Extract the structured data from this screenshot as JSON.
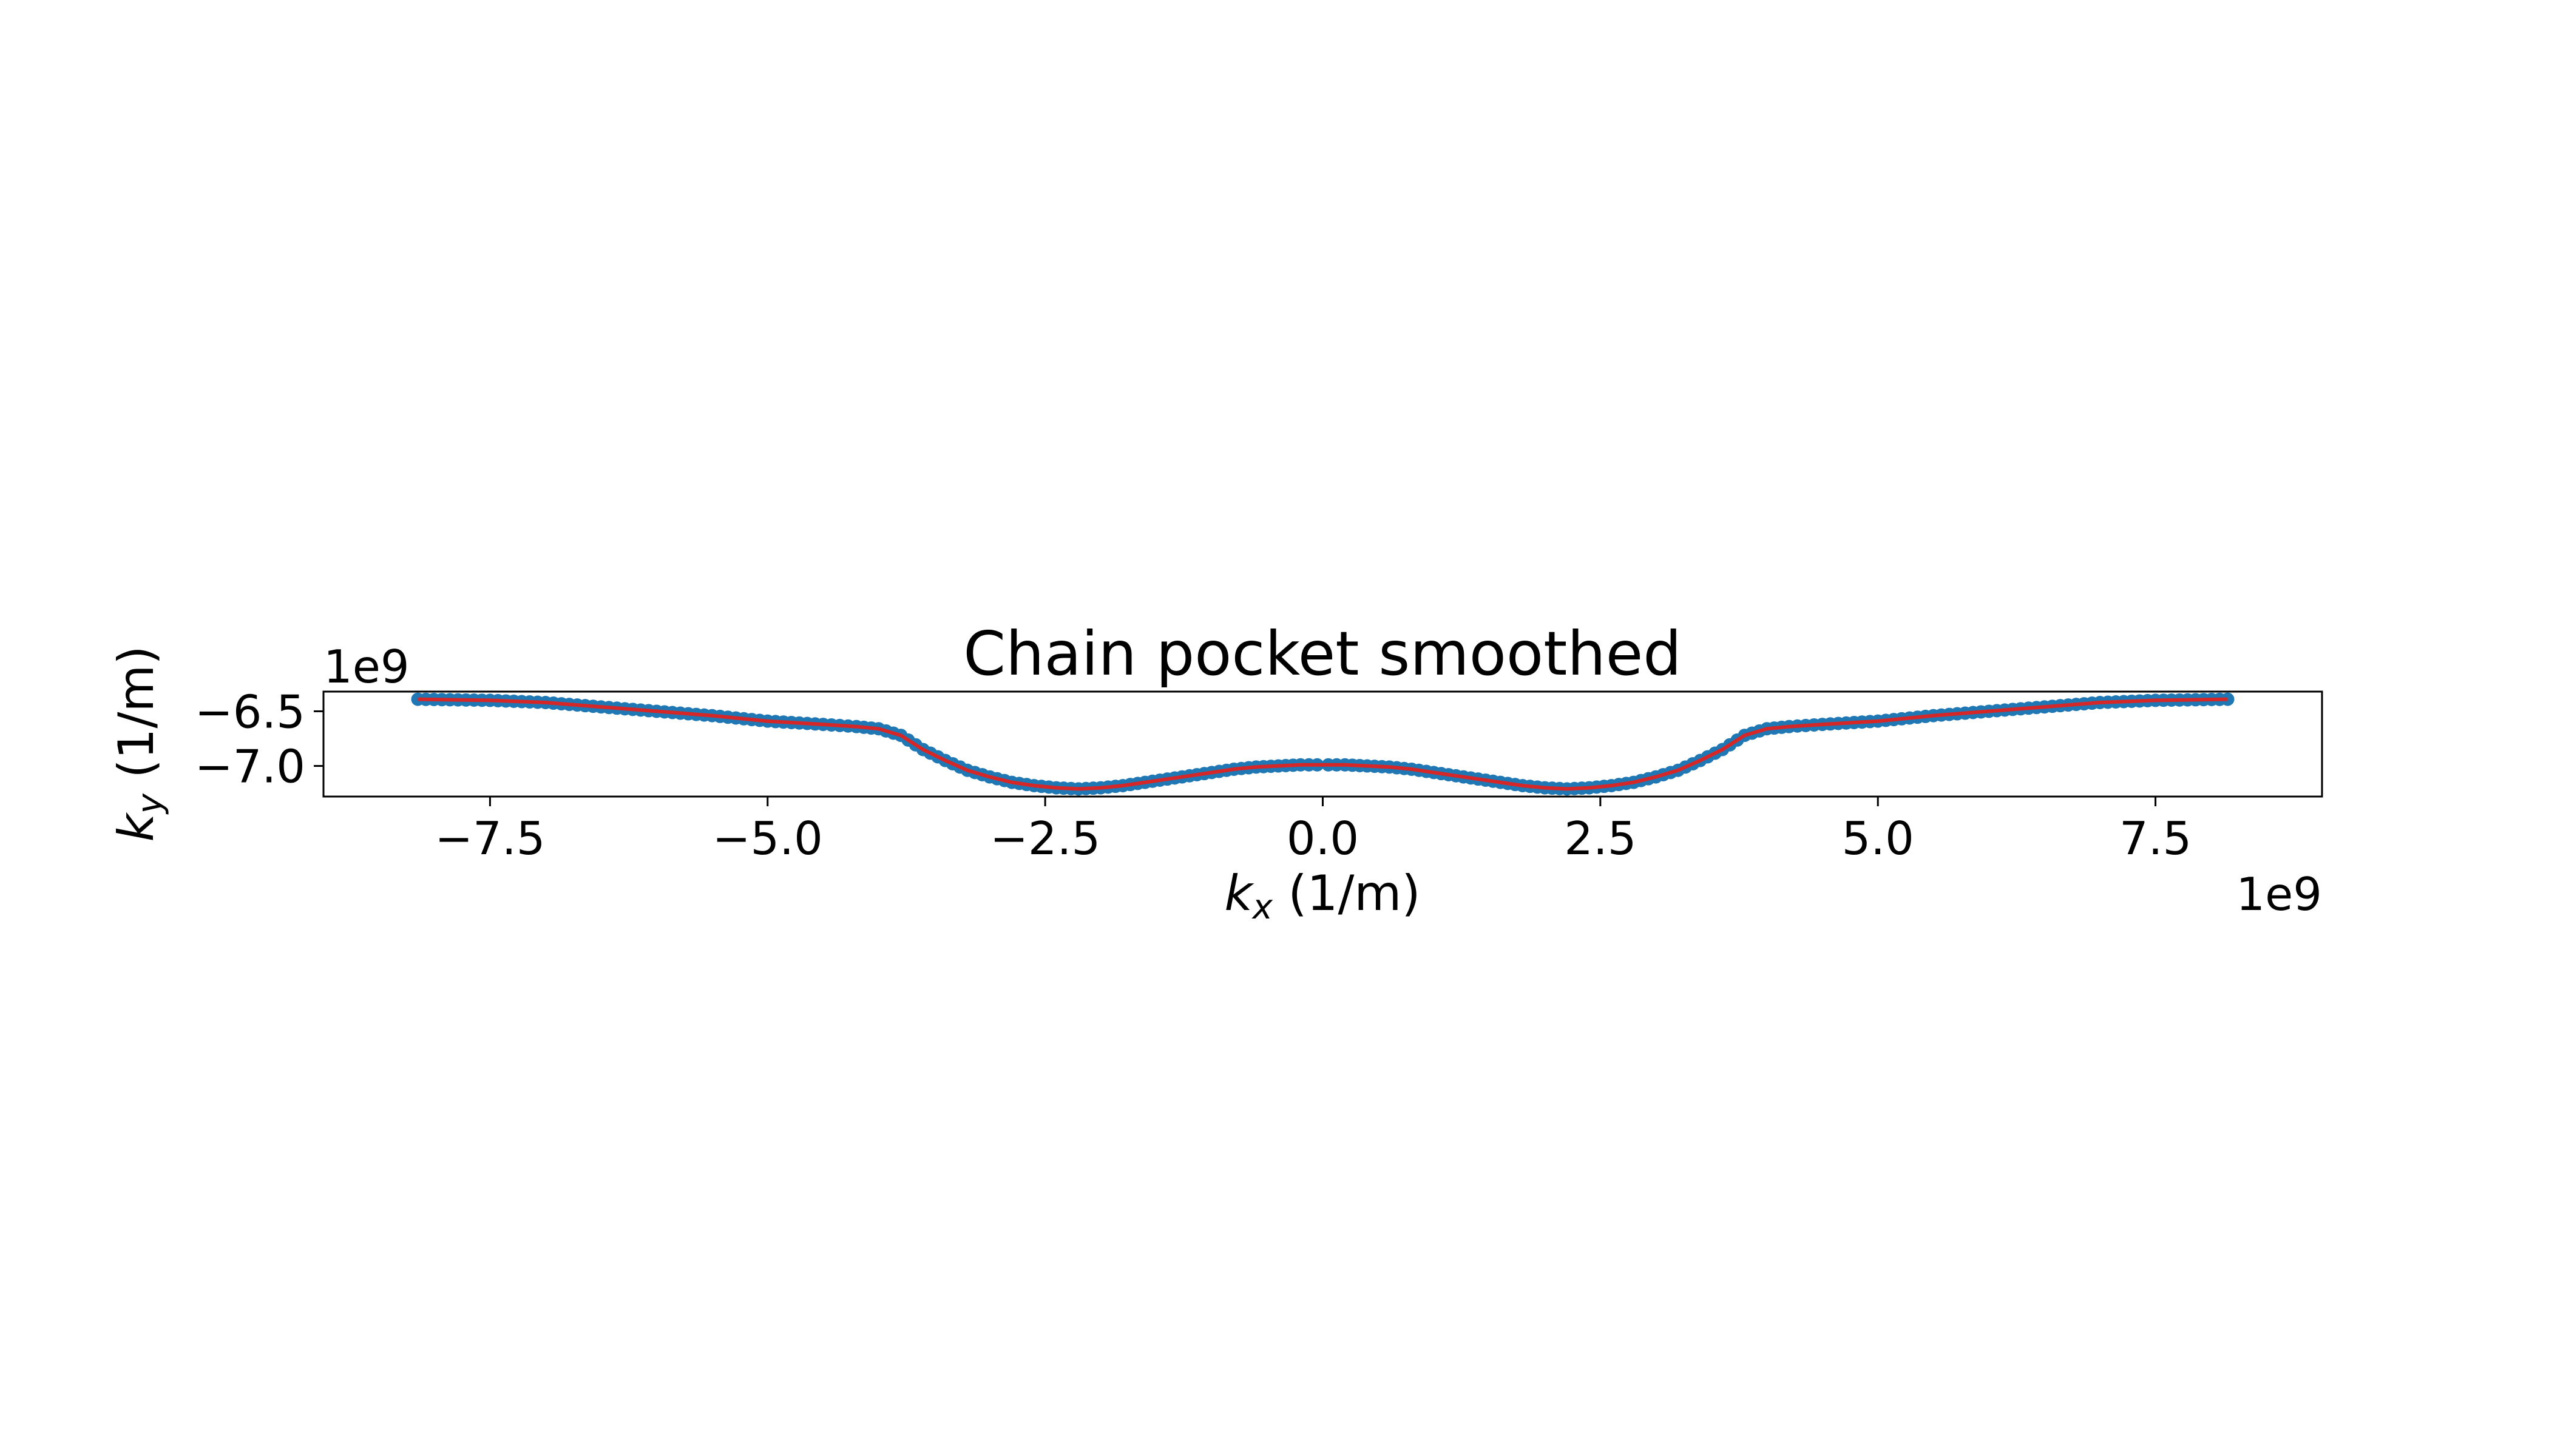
{
  "chart_data": {
    "type": "scatter",
    "title": "Chain pocket smoothed",
    "xlabel": {
      "sym": "k",
      "sub": "x",
      "rest": " (1/m)"
    },
    "ylabel": {
      "sym": "k",
      "sub": "y",
      "rest": " (1/m)"
    },
    "x_offset_label": "1e9",
    "y_offset_label": "1e9",
    "xlim": [
      -9.0,
      9.0
    ],
    "ylim": [
      -7.28,
      -6.32
    ],
    "xticks": [
      -7.5,
      -5.0,
      -2.5,
      0.0,
      2.5,
      5.0,
      7.5
    ],
    "xtick_labels": [
      "−7.5",
      "−5.0",
      "−2.5",
      "0.0",
      "2.5",
      "5.0",
      "7.5"
    ],
    "yticks": [
      -6.5,
      -7.0
    ],
    "ytick_labels": [
      "−6.5",
      "−7.0"
    ],
    "grid": false,
    "scale_note": "x and y values in units of 1e9 (1/m)",
    "series": [
      {
        "kind": "points",
        "color": "#1f77b4",
        "x": [
          -8.15,
          -7.5,
          -7.0,
          -6.5,
          -6.0,
          -5.5,
          -5.0,
          -4.5,
          -4.2,
          -4.0,
          -3.8,
          -3.6,
          -3.4,
          -3.2,
          -3.0,
          -2.8,
          -2.6,
          -2.4,
          -2.2,
          -2.0,
          -1.8,
          -1.6,
          -1.4,
          -1.2,
          -1.0,
          -0.8,
          -0.6,
          -0.4,
          -0.2,
          -0.05,
          0.05,
          0.2,
          0.4,
          0.6,
          0.8,
          1.0,
          1.2,
          1.4,
          1.6,
          1.8,
          2.0,
          2.2,
          2.4,
          2.6,
          2.8,
          3.0,
          3.2,
          3.4,
          3.6,
          3.8,
          4.0,
          4.2,
          4.5,
          5.0,
          5.5,
          6.0,
          6.5,
          7.0,
          7.5,
          8.15
        ],
        "y": [
          -6.39,
          -6.4,
          -6.42,
          -6.46,
          -6.5,
          -6.54,
          -6.59,
          -6.62,
          -6.64,
          -6.66,
          -6.72,
          -6.85,
          -6.95,
          -7.04,
          -7.1,
          -7.15,
          -7.18,
          -7.2,
          -7.21,
          -7.2,
          -7.18,
          -7.15,
          -7.12,
          -7.09,
          -7.06,
          -7.03,
          -7.01,
          -7.0,
          -6.99,
          -6.99,
          -6.99,
          -6.99,
          -7.0,
          -7.01,
          -7.03,
          -7.06,
          -7.09,
          -7.12,
          -7.15,
          -7.18,
          -7.2,
          -7.21,
          -7.2,
          -7.18,
          -7.15,
          -7.1,
          -7.04,
          -6.95,
          -6.85,
          -6.72,
          -6.66,
          -6.64,
          -6.62,
          -6.59,
          -6.54,
          -6.5,
          -6.46,
          -6.42,
          -6.4,
          -6.39
        ]
      },
      {
        "kind": "line",
        "color": "#d62728",
        "x": [
          -8.15,
          -7.5,
          -7.0,
          -6.5,
          -6.0,
          -5.5,
          -5.0,
          -4.5,
          -4.2,
          -4.0,
          -3.8,
          -3.6,
          -3.4,
          -3.2,
          -3.0,
          -2.8,
          -2.6,
          -2.4,
          -2.2,
          -2.0,
          -1.8,
          -1.6,
          -1.4,
          -1.2,
          -1.0,
          -0.8,
          -0.6,
          -0.4,
          -0.2,
          -0.05,
          0.05,
          0.2,
          0.4,
          0.6,
          0.8,
          1.0,
          1.2,
          1.4,
          1.6,
          1.8,
          2.0,
          2.2,
          2.4,
          2.6,
          2.8,
          3.0,
          3.2,
          3.4,
          3.6,
          3.8,
          4.0,
          4.2,
          4.5,
          5.0,
          5.5,
          6.0,
          6.5,
          7.0,
          7.5,
          8.15
        ],
        "y": [
          -6.39,
          -6.4,
          -6.42,
          -6.46,
          -6.5,
          -6.54,
          -6.59,
          -6.62,
          -6.64,
          -6.66,
          -6.72,
          -6.85,
          -6.95,
          -7.04,
          -7.1,
          -7.15,
          -7.18,
          -7.2,
          -7.21,
          -7.2,
          -7.18,
          -7.15,
          -7.12,
          -7.09,
          -7.06,
          -7.03,
          -7.01,
          -7.0,
          -6.99,
          -6.99,
          -6.99,
          -6.99,
          -7.0,
          -7.01,
          -7.03,
          -7.06,
          -7.09,
          -7.12,
          -7.15,
          -7.18,
          -7.2,
          -7.21,
          -7.2,
          -7.18,
          -7.15,
          -7.1,
          -7.04,
          -6.95,
          -6.85,
          -6.72,
          -6.66,
          -6.64,
          -6.62,
          -6.59,
          -6.54,
          -6.5,
          -6.46,
          -6.42,
          -6.4,
          -6.39
        ]
      }
    ]
  }
}
